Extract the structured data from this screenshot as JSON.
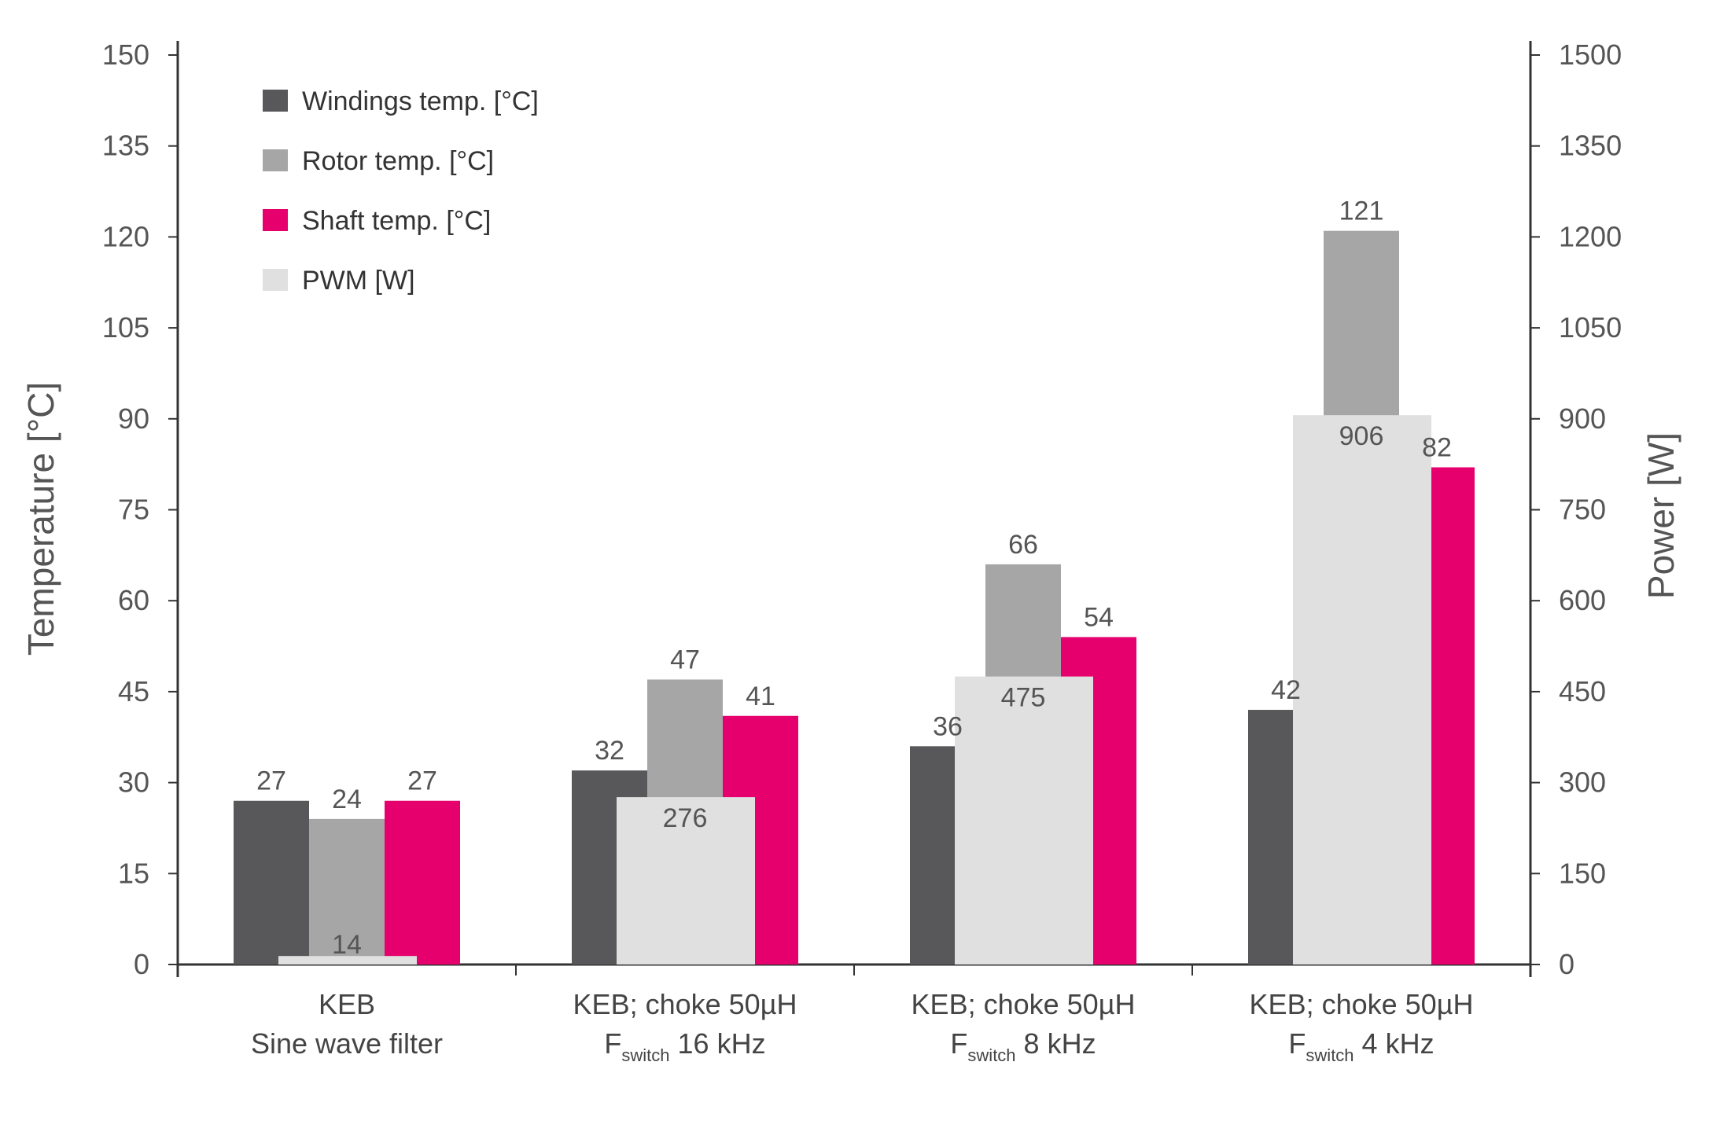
{
  "chart_data": {
    "type": "bar",
    "left_axis": {
      "label": "Temperature [°C]",
      "ylim": [
        0,
        150
      ],
      "ticks": [
        "0",
        "15",
        "30",
        "45",
        "60",
        "75",
        "90",
        "105",
        "120",
        "135",
        "150"
      ]
    },
    "right_axis": {
      "label": "Power [W]",
      "ylim": [
        0,
        1500
      ],
      "ticks": [
        "0",
        "150",
        "300",
        "450",
        "600",
        "750",
        "900",
        "1050",
        "1200",
        "1350",
        "1500"
      ]
    },
    "categories": [
      {
        "line1": "KEB",
        "line2_main": "Sine wave filter",
        "line2_sub": "",
        "line2_rest": ""
      },
      {
        "line1": "KEB; choke 50µH",
        "line2_main": "F",
        "line2_sub": "switch",
        "line2_rest": " 16 kHz"
      },
      {
        "line1": "KEB; choke 50µH",
        "line2_main": "F",
        "line2_sub": "switch",
        "line2_rest": " 8 kHz"
      },
      {
        "line1": "KEB; choke 50µH",
        "line2_main": "F",
        "line2_sub": "switch",
        "line2_rest": " 4 kHz"
      }
    ],
    "series": [
      {
        "name": "Windings temp. [°C]",
        "axis": "left",
        "color": "#58585a",
        "values": [
          27,
          32,
          36,
          42
        ],
        "labels": [
          "27",
          "32",
          "36",
          "42"
        ]
      },
      {
        "name": "Rotor temp. [°C]",
        "axis": "left",
        "color": "#a6a6a6",
        "values": [
          24,
          47,
          66,
          121
        ],
        "labels": [
          "24",
          "47",
          "66",
          "121"
        ]
      },
      {
        "name": "Shaft temp. [°C]",
        "axis": "left",
        "color": "#e5006d",
        "values": [
          27,
          41,
          54,
          82
        ],
        "labels": [
          "27",
          "41",
          "54",
          "82"
        ]
      },
      {
        "name": "PWM [W]",
        "axis": "right",
        "color": "#e0e0e0",
        "values": [
          14,
          276,
          475,
          906
        ],
        "labels": [
          "14",
          "276",
          "475",
          "906"
        ]
      }
    ],
    "legend_position": "top-left",
    "grid": false
  }
}
